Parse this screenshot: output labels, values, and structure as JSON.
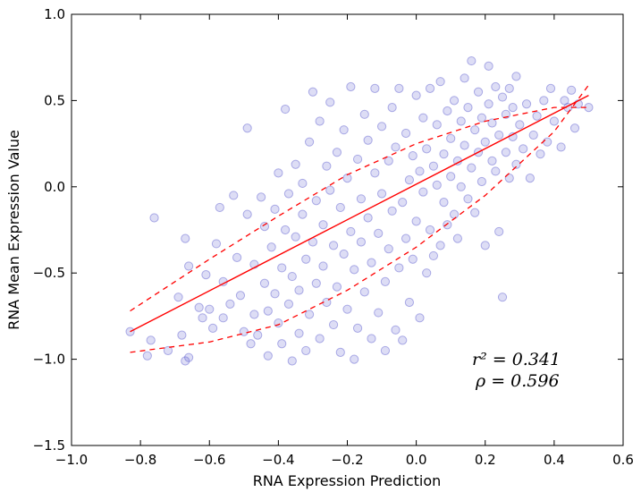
{
  "chart_data": {
    "type": "scatter",
    "title": "",
    "xlabel": "RNA Expression Prediction",
    "ylabel": "RNA Mean Expression Value",
    "xlim": [
      -1.0,
      0.6
    ],
    "ylim": [
      -1.5,
      1.0
    ],
    "xticks": [
      -1.0,
      -0.8,
      -0.6,
      -0.4,
      -0.2,
      0.0,
      0.2,
      0.4,
      0.6
    ],
    "yticks": [
      -1.5,
      -1.0,
      -0.5,
      0.0,
      0.5,
      1.0
    ],
    "xtick_labels": [
      "−1.0",
      "−0.8",
      "−0.6",
      "−0.4",
      "−0.2",
      "0.0",
      "0.2",
      "0.4",
      "0.6"
    ],
    "ytick_labels": [
      "−1.5",
      "−1.0",
      "−0.5",
      "0.0",
      "0.5",
      "1.0"
    ],
    "grid": false,
    "point_color": "#5555cc",
    "fit_color": "#ff0000",
    "annotations": {
      "r2": "r² = 0.341",
      "rho": "ρ = 0.596"
    },
    "fit_line": {
      "x": [
        -0.83,
        0.5
      ],
      "y": [
        -0.84,
        0.53
      ]
    },
    "upper_band": {
      "x": [
        -0.83,
        -0.6,
        -0.4,
        -0.2,
        0.0,
        0.2,
        0.4,
        0.5
      ],
      "y": [
        -0.72,
        -0.42,
        -0.17,
        0.07,
        0.25,
        0.38,
        0.46,
        0.46
      ]
    },
    "lower_band": {
      "x": [
        -0.83,
        -0.6,
        -0.4,
        -0.2,
        0.0,
        0.2,
        0.4,
        0.5
      ],
      "y": [
        -0.96,
        -0.9,
        -0.8,
        -0.6,
        -0.35,
        -0.05,
        0.32,
        0.59
      ]
    },
    "points": [
      [
        -0.83,
        -0.84
      ],
      [
        -0.76,
        -0.18
      ],
      [
        -0.78,
        -0.98
      ],
      [
        -0.77,
        -0.89
      ],
      [
        -0.72,
        -0.95
      ],
      [
        -0.69,
        -0.64
      ],
      [
        -0.68,
        -0.86
      ],
      [
        -0.67,
        -0.3
      ],
      [
        -0.66,
        -0.46
      ],
      [
        -0.67,
        -1.01
      ],
      [
        -0.66,
        -0.99
      ],
      [
        -0.63,
        -0.7
      ],
      [
        -0.62,
        -0.76
      ],
      [
        -0.61,
        -0.51
      ],
      [
        -0.6,
        -0.71
      ],
      [
        -0.59,
        -0.82
      ],
      [
        -0.58,
        -0.33
      ],
      [
        -0.57,
        -0.12
      ],
      [
        -0.56,
        -0.55
      ],
      [
        -0.56,
        -0.76
      ],
      [
        -0.54,
        -0.68
      ],
      [
        -0.53,
        -0.05
      ],
      [
        -0.52,
        -0.41
      ],
      [
        -0.51,
        -0.63
      ],
      [
        -0.5,
        -0.84
      ],
      [
        -0.49,
        -0.16
      ],
      [
        -0.49,
        0.34
      ],
      [
        -0.48,
        -0.91
      ],
      [
        -0.47,
        -0.45
      ],
      [
        -0.47,
        -0.74
      ],
      [
        -0.46,
        -0.86
      ],
      [
        -0.45,
        -0.06
      ],
      [
        -0.44,
        -0.23
      ],
      [
        -0.44,
        -0.56
      ],
      [
        -0.43,
        -0.72
      ],
      [
        -0.43,
        -0.98
      ],
      [
        -0.42,
        -0.35
      ],
      [
        -0.41,
        -0.13
      ],
      [
        -0.41,
        -0.62
      ],
      [
        -0.4,
        0.08
      ],
      [
        -0.4,
        -0.79
      ],
      [
        -0.39,
        -0.91
      ],
      [
        -0.39,
        -0.47
      ],
      [
        -0.38,
        -0.25
      ],
      [
        -0.38,
        0.45
      ],
      [
        -0.37,
        -0.04
      ],
      [
        -0.37,
        -0.68
      ],
      [
        -0.36,
        -1.01
      ],
      [
        -0.36,
        -0.52
      ],
      [
        -0.35,
        0.13
      ],
      [
        -0.35,
        -0.29
      ],
      [
        -0.34,
        -0.85
      ],
      [
        -0.34,
        -0.6
      ],
      [
        -0.33,
        0.02
      ],
      [
        -0.33,
        -0.16
      ],
      [
        -0.32,
        -0.95
      ],
      [
        -0.32,
        -0.42
      ],
      [
        -0.31,
        0.26
      ],
      [
        -0.31,
        -0.74
      ],
      [
        -0.3,
        -0.32
      ],
      [
        -0.3,
        0.55
      ],
      [
        -0.29,
        -0.08
      ],
      [
        -0.29,
        -0.56
      ],
      [
        -0.28,
        0.38
      ],
      [
        -0.28,
        -0.88
      ],
      [
        -0.27,
        -0.22
      ],
      [
        -0.27,
        -0.46
      ],
      [
        -0.26,
        0.12
      ],
      [
        -0.26,
        -0.67
      ],
      [
        -0.25,
        -0.02
      ],
      [
        -0.25,
        0.49
      ],
      [
        -0.24,
        -0.34
      ],
      [
        -0.24,
        -0.8
      ],
      [
        -0.23,
        0.2
      ],
      [
        -0.23,
        -0.58
      ],
      [
        -0.22,
        -0.12
      ],
      [
        -0.22,
        -0.96
      ],
      [
        -0.21,
        -0.39
      ],
      [
        -0.21,
        0.33
      ],
      [
        -0.2,
        0.05
      ],
      [
        -0.2,
        -0.71
      ],
      [
        -0.19,
        -0.26
      ],
      [
        -0.19,
        0.58
      ],
      [
        -0.18,
        -0.48
      ],
      [
        -0.18,
        -1.0
      ],
      [
        -0.17,
        0.16
      ],
      [
        -0.17,
        -0.82
      ],
      [
        -0.16,
        -0.07
      ],
      [
        -0.16,
        -0.32
      ],
      [
        -0.15,
        0.42
      ],
      [
        -0.15,
        -0.61
      ],
      [
        -0.14,
        -0.18
      ],
      [
        -0.14,
        0.27
      ],
      [
        -0.13,
        -0.88
      ],
      [
        -0.13,
        -0.44
      ],
      [
        -0.12,
        0.08
      ],
      [
        -0.12,
        0.57
      ],
      [
        -0.11,
        -0.27
      ],
      [
        -0.11,
        -0.73
      ],
      [
        -0.1,
        -0.04
      ],
      [
        -0.1,
        0.35
      ],
      [
        -0.09,
        -0.55
      ],
      [
        -0.09,
        -0.95
      ],
      [
        -0.08,
        0.15
      ],
      [
        -0.08,
        -0.36
      ],
      [
        -0.07,
        0.46
      ],
      [
        -0.07,
        -0.14
      ],
      [
        -0.06,
        -0.83
      ],
      [
        -0.06,
        0.23
      ],
      [
        -0.05,
        -0.47
      ],
      [
        -0.05,
        0.57
      ],
      [
        -0.04,
        -0.09
      ],
      [
        -0.04,
        -0.89
      ],
      [
        -0.03,
        0.31
      ],
      [
        -0.03,
        -0.3
      ],
      [
        -0.02,
        0.04
      ],
      [
        -0.02,
        -0.67
      ],
      [
        -0.01,
        0.18
      ],
      [
        -0.01,
        -0.42
      ],
      [
        0.0,
        0.53
      ],
      [
        0.0,
        -0.2
      ],
      [
        0.01,
        0.09
      ],
      [
        0.01,
        -0.76
      ],
      [
        0.02,
        0.4
      ],
      [
        0.02,
        -0.03
      ],
      [
        0.03,
        -0.5
      ],
      [
        0.03,
        0.22
      ],
      [
        0.04,
        0.57
      ],
      [
        0.04,
        -0.25
      ],
      [
        0.05,
        0.12
      ],
      [
        0.05,
        -0.4
      ],
      [
        0.06,
        0.36
      ],
      [
        0.06,
        0.01
      ],
      [
        0.07,
        0.61
      ],
      [
        0.07,
        -0.34
      ],
      [
        0.08,
        0.19
      ],
      [
        0.08,
        -0.09
      ],
      [
        0.09,
        0.44
      ],
      [
        0.09,
        -0.22
      ],
      [
        0.1,
        0.06
      ],
      [
        0.1,
        0.28
      ],
      [
        0.11,
        0.5
      ],
      [
        0.11,
        -0.16
      ],
      [
        0.12,
        0.15
      ],
      [
        0.12,
        -0.3
      ],
      [
        0.13,
        0.38
      ],
      [
        0.13,
        0.0
      ],
      [
        0.14,
        0.63
      ],
      [
        0.14,
        0.24
      ],
      [
        0.15,
        -0.07
      ],
      [
        0.15,
        0.46
      ],
      [
        0.16,
        0.11
      ],
      [
        0.16,
        0.73
      ],
      [
        0.17,
        0.33
      ],
      [
        0.17,
        -0.15
      ],
      [
        0.18,
        0.2
      ],
      [
        0.18,
        0.55
      ],
      [
        0.19,
        0.03
      ],
      [
        0.19,
        0.4
      ],
      [
        0.2,
        0.26
      ],
      [
        0.2,
        -0.34
      ],
      [
        0.21,
        0.48
      ],
      [
        0.21,
        0.7
      ],
      [
        0.22,
        0.15
      ],
      [
        0.22,
        0.37
      ],
      [
        0.23,
        0.58
      ],
      [
        0.23,
        0.09
      ],
      [
        0.24,
        0.3
      ],
      [
        0.24,
        -0.26
      ],
      [
        0.25,
        0.52
      ],
      [
        0.25,
        -0.64
      ],
      [
        0.26,
        0.2
      ],
      [
        0.26,
        0.42
      ],
      [
        0.27,
        0.57
      ],
      [
        0.27,
        0.05
      ],
      [
        0.28,
        0.29
      ],
      [
        0.28,
        0.46
      ],
      [
        0.29,
        0.13
      ],
      [
        0.29,
        0.64
      ],
      [
        0.3,
        0.36
      ],
      [
        0.31,
        0.22
      ],
      [
        0.32,
        0.48
      ],
      [
        0.33,
        0.05
      ],
      [
        0.34,
        0.3
      ],
      [
        0.35,
        0.41
      ],
      [
        0.36,
        0.19
      ],
      [
        0.37,
        0.5
      ],
      [
        0.38,
        0.26
      ],
      [
        0.39,
        0.57
      ],
      [
        0.4,
        0.38
      ],
      [
        0.42,
        0.23
      ],
      [
        0.43,
        0.5
      ],
      [
        0.44,
        0.46
      ],
      [
        0.45,
        0.56
      ],
      [
        0.46,
        0.34
      ],
      [
        0.47,
        0.48
      ],
      [
        0.5,
        0.46
      ]
    ]
  }
}
